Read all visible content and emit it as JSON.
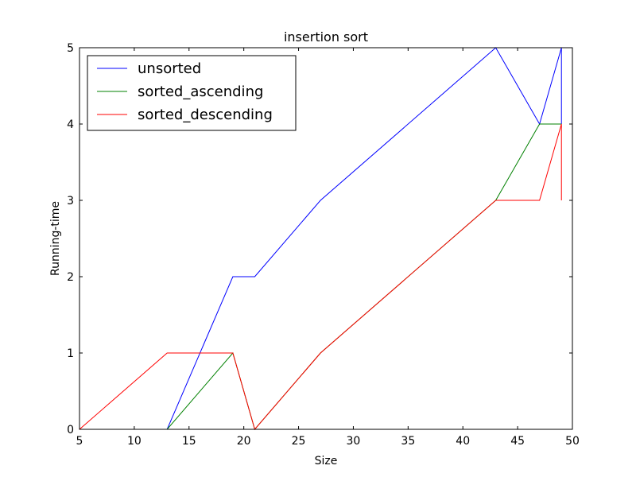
{
  "chart_data": {
    "type": "line",
    "title": "insertion sort",
    "xlabel": "Size",
    "ylabel": "Running-time",
    "xlim": [
      5,
      50
    ],
    "ylim": [
      0,
      5
    ],
    "xticks": [
      5,
      10,
      15,
      20,
      25,
      30,
      35,
      40,
      45,
      50
    ],
    "yticks": [
      0,
      1,
      2,
      3,
      4,
      5
    ],
    "grid": false,
    "legend_position": "top-left",
    "series": [
      {
        "name": "unsorted",
        "color": "#0000ff",
        "points": [
          [
            5,
            0
          ],
          [
            13,
            0
          ],
          [
            19,
            2
          ],
          [
            21,
            2
          ],
          [
            27,
            3
          ],
          [
            43,
            5
          ],
          [
            47,
            4
          ],
          [
            49,
            5
          ],
          [
            49,
            4
          ]
        ]
      },
      {
        "name": "sorted_ascending",
        "color": "#008000",
        "points": [
          [
            5,
            0
          ],
          [
            13,
            0
          ],
          [
            19,
            1
          ],
          [
            21,
            0
          ],
          [
            27,
            1
          ],
          [
            43,
            3
          ],
          [
            47,
            4
          ],
          [
            49,
            4
          ]
        ]
      },
      {
        "name": "sorted_descending",
        "color": "#ff0000",
        "points": [
          [
            5,
            0
          ],
          [
            13,
            1
          ],
          [
            19,
            1
          ],
          [
            21,
            0
          ],
          [
            27,
            1
          ],
          [
            43,
            3
          ],
          [
            47,
            3
          ],
          [
            49,
            4
          ],
          [
            49,
            3
          ]
        ]
      }
    ]
  }
}
